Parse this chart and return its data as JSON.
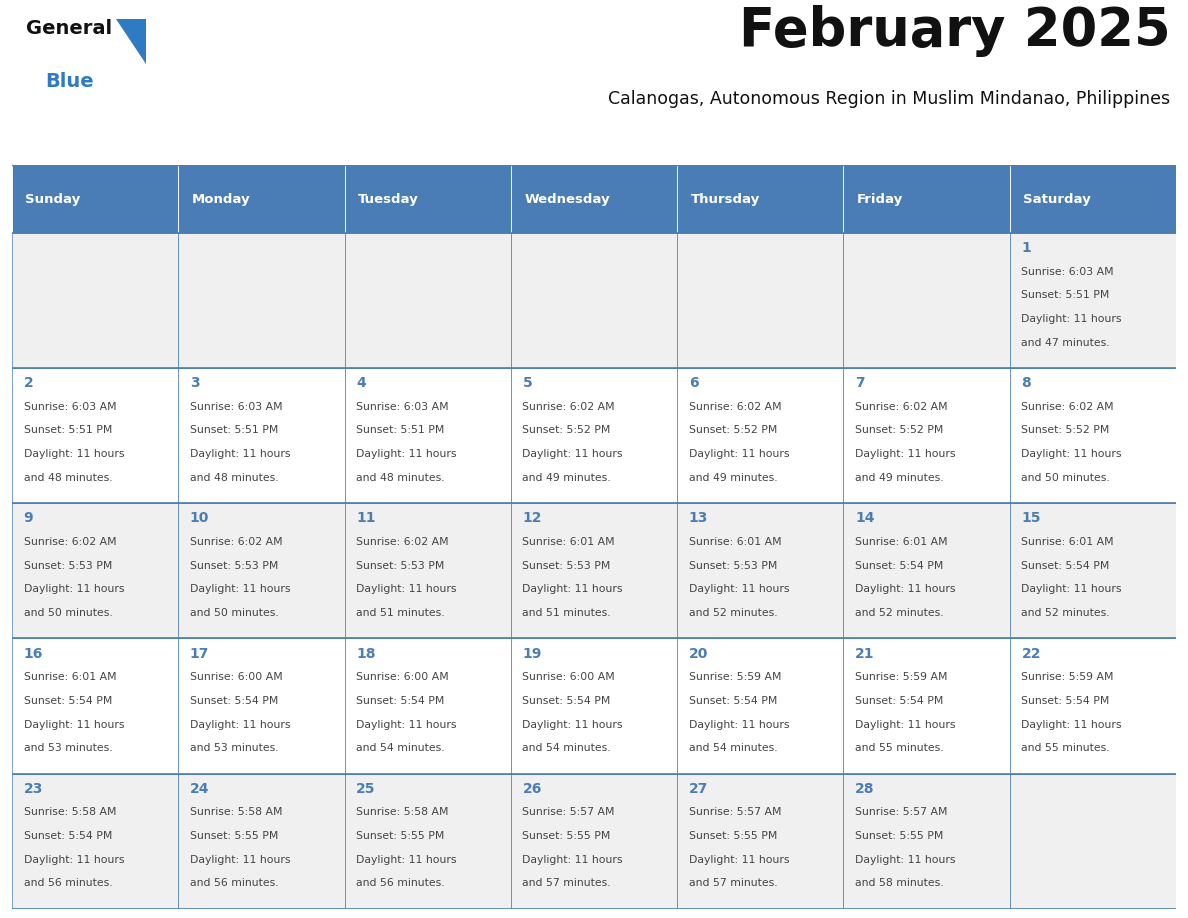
{
  "title": "February 2025",
  "subtitle": "Calanogas, Autonomous Region in Muslim Mindanao, Philippines",
  "days_of_week": [
    "Sunday",
    "Monday",
    "Tuesday",
    "Wednesday",
    "Thursday",
    "Friday",
    "Saturday"
  ],
  "header_bg_color": "#4a7db5",
  "header_text_color": "#ffffff",
  "cell_bg_even": "#f0f0f0",
  "cell_bg_odd": "#ffffff",
  "cell_border_color": "#4a7db5",
  "day_number_color": "#4a7db5",
  "text_color": "#444444",
  "title_color": "#111111",
  "subtitle_color": "#111111",
  "logo_general_color": "#111111",
  "logo_blue_color": "#2e7bc4",
  "background_color": "#ffffff",
  "calendar_data": [
    {
      "day": 1,
      "col": 6,
      "row": 0,
      "sunrise": "6:03 AM",
      "sunset": "5:51 PM",
      "daylight": "11 hours and 47 minutes."
    },
    {
      "day": 2,
      "col": 0,
      "row": 1,
      "sunrise": "6:03 AM",
      "sunset": "5:51 PM",
      "daylight": "11 hours and 48 minutes."
    },
    {
      "day": 3,
      "col": 1,
      "row": 1,
      "sunrise": "6:03 AM",
      "sunset": "5:51 PM",
      "daylight": "11 hours and 48 minutes."
    },
    {
      "day": 4,
      "col": 2,
      "row": 1,
      "sunrise": "6:03 AM",
      "sunset": "5:51 PM",
      "daylight": "11 hours and 48 minutes."
    },
    {
      "day": 5,
      "col": 3,
      "row": 1,
      "sunrise": "6:02 AM",
      "sunset": "5:52 PM",
      "daylight": "11 hours and 49 minutes."
    },
    {
      "day": 6,
      "col": 4,
      "row": 1,
      "sunrise": "6:02 AM",
      "sunset": "5:52 PM",
      "daylight": "11 hours and 49 minutes."
    },
    {
      "day": 7,
      "col": 5,
      "row": 1,
      "sunrise": "6:02 AM",
      "sunset": "5:52 PM",
      "daylight": "11 hours and 49 minutes."
    },
    {
      "day": 8,
      "col": 6,
      "row": 1,
      "sunrise": "6:02 AM",
      "sunset": "5:52 PM",
      "daylight": "11 hours and 50 minutes."
    },
    {
      "day": 9,
      "col": 0,
      "row": 2,
      "sunrise": "6:02 AM",
      "sunset": "5:53 PM",
      "daylight": "11 hours and 50 minutes."
    },
    {
      "day": 10,
      "col": 1,
      "row": 2,
      "sunrise": "6:02 AM",
      "sunset": "5:53 PM",
      "daylight": "11 hours and 50 minutes."
    },
    {
      "day": 11,
      "col": 2,
      "row": 2,
      "sunrise": "6:02 AM",
      "sunset": "5:53 PM",
      "daylight": "11 hours and 51 minutes."
    },
    {
      "day": 12,
      "col": 3,
      "row": 2,
      "sunrise": "6:01 AM",
      "sunset": "5:53 PM",
      "daylight": "11 hours and 51 minutes."
    },
    {
      "day": 13,
      "col": 4,
      "row": 2,
      "sunrise": "6:01 AM",
      "sunset": "5:53 PM",
      "daylight": "11 hours and 52 minutes."
    },
    {
      "day": 14,
      "col": 5,
      "row": 2,
      "sunrise": "6:01 AM",
      "sunset": "5:54 PM",
      "daylight": "11 hours and 52 minutes."
    },
    {
      "day": 15,
      "col": 6,
      "row": 2,
      "sunrise": "6:01 AM",
      "sunset": "5:54 PM",
      "daylight": "11 hours and 52 minutes."
    },
    {
      "day": 16,
      "col": 0,
      "row": 3,
      "sunrise": "6:01 AM",
      "sunset": "5:54 PM",
      "daylight": "11 hours and 53 minutes."
    },
    {
      "day": 17,
      "col": 1,
      "row": 3,
      "sunrise": "6:00 AM",
      "sunset": "5:54 PM",
      "daylight": "11 hours and 53 minutes."
    },
    {
      "day": 18,
      "col": 2,
      "row": 3,
      "sunrise": "6:00 AM",
      "sunset": "5:54 PM",
      "daylight": "11 hours and 54 minutes."
    },
    {
      "day": 19,
      "col": 3,
      "row": 3,
      "sunrise": "6:00 AM",
      "sunset": "5:54 PM",
      "daylight": "11 hours and 54 minutes."
    },
    {
      "day": 20,
      "col": 4,
      "row": 3,
      "sunrise": "5:59 AM",
      "sunset": "5:54 PM",
      "daylight": "11 hours and 54 minutes."
    },
    {
      "day": 21,
      "col": 5,
      "row": 3,
      "sunrise": "5:59 AM",
      "sunset": "5:54 PM",
      "daylight": "11 hours and 55 minutes."
    },
    {
      "day": 22,
      "col": 6,
      "row": 3,
      "sunrise": "5:59 AM",
      "sunset": "5:54 PM",
      "daylight": "11 hours and 55 minutes."
    },
    {
      "day": 23,
      "col": 0,
      "row": 4,
      "sunrise": "5:58 AM",
      "sunset": "5:54 PM",
      "daylight": "11 hours and 56 minutes."
    },
    {
      "day": 24,
      "col": 1,
      "row": 4,
      "sunrise": "5:58 AM",
      "sunset": "5:55 PM",
      "daylight": "11 hours and 56 minutes."
    },
    {
      "day": 25,
      "col": 2,
      "row": 4,
      "sunrise": "5:58 AM",
      "sunset": "5:55 PM",
      "daylight": "11 hours and 56 minutes."
    },
    {
      "day": 26,
      "col": 3,
      "row": 4,
      "sunrise": "5:57 AM",
      "sunset": "5:55 PM",
      "daylight": "11 hours and 57 minutes."
    },
    {
      "day": 27,
      "col": 4,
      "row": 4,
      "sunrise": "5:57 AM",
      "sunset": "5:55 PM",
      "daylight": "11 hours and 57 minutes."
    },
    {
      "day": 28,
      "col": 5,
      "row": 4,
      "sunrise": "5:57 AM",
      "sunset": "5:55 PM",
      "daylight": "11 hours and 58 minutes."
    }
  ],
  "num_rows": 5,
  "num_cols": 7
}
